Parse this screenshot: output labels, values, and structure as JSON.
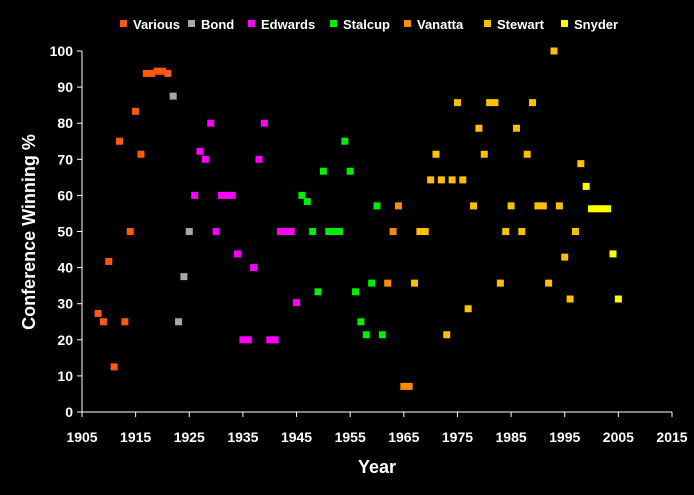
{
  "chart_data": {
    "type": "scatter",
    "title": "",
    "xlabel": "Year",
    "ylabel": "Conference Winning %",
    "xlim": [
      1905,
      2015
    ],
    "ylim": [
      0,
      100
    ],
    "x_ticks": [
      "1905",
      "1915",
      "1925",
      "1935",
      "1945",
      "1955",
      "1965",
      "1975",
      "1985",
      "1995",
      "2005",
      "2015"
    ],
    "y_ticks": [
      "0",
      "10",
      "20",
      "30",
      "40",
      "50",
      "60",
      "70",
      "80",
      "90",
      "100"
    ],
    "grid": false,
    "legend_position": "top",
    "series": [
      {
        "name": "Various",
        "color": "#ff5a14",
        "points": [
          [
            1908,
            27.3
          ],
          [
            1909,
            25
          ],
          [
            1910,
            41.7
          ],
          [
            1911,
            12.5
          ],
          [
            1912,
            75
          ],
          [
            1913,
            25
          ],
          [
            1914,
            50
          ],
          [
            1915,
            83.3
          ],
          [
            1916,
            71.4
          ],
          [
            1917,
            93.8
          ],
          [
            1918,
            93.8
          ],
          [
            1919,
            94.4
          ],
          [
            1920,
            94.4
          ],
          [
            1921,
            93.8
          ]
        ]
      },
      {
        "name": "Bond",
        "color": "#a8a8a8",
        "points": [
          [
            1922,
            87.5
          ],
          [
            1923,
            25
          ],
          [
            1924,
            37.5
          ],
          [
            1925,
            50
          ]
        ]
      },
      {
        "name": "Edwards",
        "color": "#ff00ff",
        "points": [
          [
            1926,
            60
          ],
          [
            1927,
            72.2
          ],
          [
            1928,
            70
          ],
          [
            1929,
            80
          ],
          [
            1930,
            50
          ],
          [
            1931,
            60
          ],
          [
            1932,
            60
          ],
          [
            1933,
            60
          ],
          [
            1934,
            43.8
          ],
          [
            1935,
            20
          ],
          [
            1936,
            20
          ],
          [
            1937,
            40
          ],
          [
            1938,
            70
          ],
          [
            1939,
            80
          ],
          [
            1940,
            20
          ],
          [
            1941,
            20
          ],
          [
            1942,
            50
          ],
          [
            1943,
            50
          ],
          [
            1944,
            50
          ],
          [
            1945,
            30.3
          ]
        ]
      },
      {
        "name": "Stalcup",
        "color": "#00ee00",
        "points": [
          [
            1946,
            60
          ],
          [
            1947,
            58.3
          ],
          [
            1948,
            50
          ],
          [
            1949,
            33.3
          ],
          [
            1950,
            66.7
          ],
          [
            1951,
            50
          ],
          [
            1952,
            50
          ],
          [
            1953,
            50
          ],
          [
            1954,
            75
          ],
          [
            1955,
            66.7
          ],
          [
            1956,
            33.3
          ],
          [
            1957,
            25
          ],
          [
            1958,
            21.4
          ],
          [
            1959,
            35.7
          ],
          [
            1960,
            57.1
          ],
          [
            1961,
            21.4
          ]
        ]
      },
      {
        "name": "Vanatta",
        "color": "#ff8c00",
        "points": [
          [
            1962,
            35.7
          ],
          [
            1963,
            50
          ],
          [
            1964,
            57.1
          ],
          [
            1965,
            7.1
          ],
          [
            1966,
            7.1
          ]
        ]
      },
      {
        "name": "Stewart",
        "color": "#ffc000",
        "points": [
          [
            1967,
            35.7
          ],
          [
            1968,
            50
          ],
          [
            1969,
            50
          ],
          [
            1970,
            64.3
          ],
          [
            1971,
            71.4
          ],
          [
            1972,
            64.3
          ],
          [
            1973,
            21.4
          ],
          [
            1974,
            64.3
          ],
          [
            1975,
            85.7
          ],
          [
            1976,
            64.3
          ],
          [
            1977,
            28.6
          ],
          [
            1978,
            57.1
          ],
          [
            1979,
            78.6
          ],
          [
            1980,
            71.4
          ],
          [
            1981,
            85.7
          ],
          [
            1982,
            85.7
          ],
          [
            1983,
            35.7
          ],
          [
            1984,
            50
          ],
          [
            1985,
            57.1
          ],
          [
            1986,
            78.6
          ],
          [
            1987,
            50
          ],
          [
            1988,
            71.4
          ],
          [
            1989,
            85.7
          ],
          [
            1990,
            57.1
          ],
          [
            1991,
            57.1
          ],
          [
            1992,
            35.7
          ],
          [
            1993,
            100
          ],
          [
            1994,
            57.1
          ],
          [
            1995,
            42.9
          ],
          [
            1996,
            31.3
          ],
          [
            1997,
            50
          ],
          [
            1998,
            68.8
          ]
        ]
      },
      {
        "name": "Snyder",
        "color": "#ffff00",
        "points": [
          [
            1999,
            62.5
          ],
          [
            2000,
            56.3
          ],
          [
            2001,
            56.3
          ],
          [
            2002,
            56.3
          ],
          [
            2003,
            56.3
          ],
          [
            2004,
            43.8
          ],
          [
            2005,
            31.3
          ]
        ]
      }
    ]
  }
}
